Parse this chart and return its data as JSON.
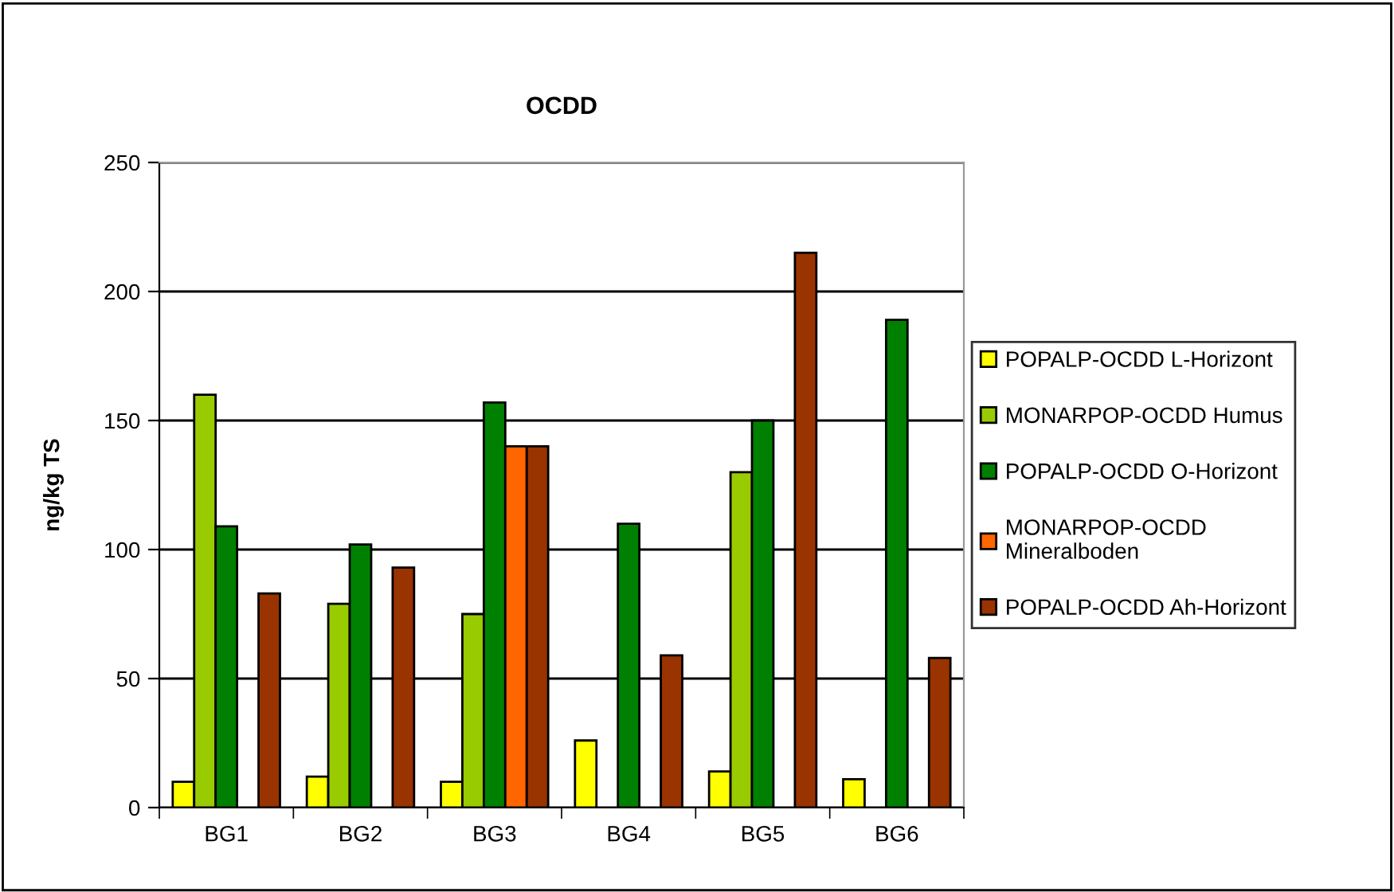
{
  "chart_data": {
    "type": "bar",
    "title": "OCDD",
    "ylabel": "ng/kg TS",
    "categories": [
      "BG1",
      "BG2",
      "BG3",
      "BG4",
      "BG5",
      "BG6"
    ],
    "series": [
      {
        "name": "POPALP-OCDD L-Horizont",
        "color": "#ffff00",
        "values": [
          10,
          12,
          10,
          26,
          14,
          11
        ]
      },
      {
        "name": "MONARPOP-OCDD Humus",
        "color": "#99cc00",
        "values": [
          160,
          79,
          75,
          null,
          130,
          null
        ]
      },
      {
        "name": "POPALP-OCDD O-Horizont",
        "color": "#008000",
        "values": [
          109,
          102,
          157,
          110,
          150,
          189
        ]
      },
      {
        "name": "MONARPOP-OCDD\nMineralboden",
        "color": "#ff6600",
        "values": [
          null,
          null,
          140,
          null,
          null,
          null
        ]
      },
      {
        "name": "POPALP-OCDD Ah-Horizont",
        "color": "#993300",
        "values": [
          83,
          93,
          140,
          59,
          215,
          58
        ]
      }
    ],
    "ylim": [
      0,
      250
    ],
    "yticks": [
      0,
      50,
      100,
      150,
      200,
      250
    ],
    "grid": "y",
    "legend": "right"
  }
}
